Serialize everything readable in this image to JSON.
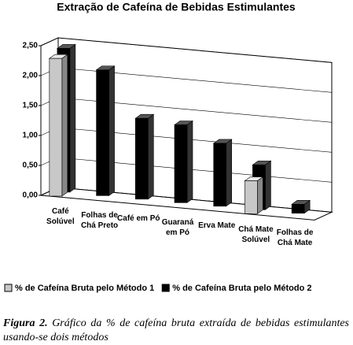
{
  "chart_data": {
    "type": "bar3d",
    "title": "Extração de Cafeína de Bebidas Estimulantes",
    "categories": [
      "Café Solúvel",
      "Folhas de Chá Preto",
      "Café em Pó",
      "Guaraná em Pó",
      "Erva Mate",
      "Chá Mate Solúvel",
      "Folhas de Chá Mate"
    ],
    "series": [
      {
        "name": "% de Cafeína Bruta pelo Método 1",
        "color": "#c8c8c8",
        "values": [
          2.3,
          null,
          null,
          null,
          null,
          0.55,
          null
        ]
      },
      {
        "name": "% de Cafeína Bruta pelo Método 2",
        "color": "#000000",
        "values": [
          2.4,
          2.1,
          1.35,
          1.3,
          1.05,
          0.75,
          0.15
        ]
      }
    ],
    "ylim": [
      0,
      2.5
    ],
    "yticks": [
      {
        "value": 0,
        "label": "0,00"
      },
      {
        "value": 0.5,
        "label": "0,50"
      },
      {
        "value": 1,
        "label": "1,00"
      },
      {
        "value": 1.5,
        "label": "1,50"
      },
      {
        "value": 2,
        "label": "2,00"
      },
      {
        "value": 2.5,
        "label": "2,50"
      }
    ],
    "grid": true,
    "legend": "bottom"
  },
  "caption": {
    "label": "Figura 2.",
    "text": "Gráfico da % de cafeína bruta extraída de bebidas estimulantes usando-se dois métodos"
  }
}
